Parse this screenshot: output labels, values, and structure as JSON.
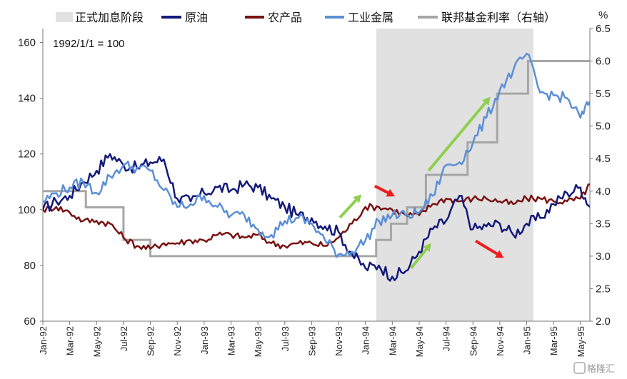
{
  "chart_data": {
    "type": "line",
    "annotation": "1992/1/1 = 100",
    "right_axis_unit": "%",
    "ylim_left": [
      60,
      165
    ],
    "yticks_left": [
      "60",
      "80",
      "100",
      "120",
      "140",
      "160"
    ],
    "ylim_right": [
      2.0,
      6.5
    ],
    "yticks_right": [
      "2.0",
      "2.5",
      "3.0",
      "3.5",
      "4.0",
      "4.5",
      "5.0",
      "5.5",
      "6.0",
      "6.5"
    ],
    "x_tick_labels": [
      "Jan-92",
      "Mar-92",
      "May-92",
      "Jul-92",
      "Sep-92",
      "Nov-92",
      "Jan-93",
      "Mar-93",
      "May-93",
      "Jul-93",
      "Sep-93",
      "Nov-93",
      "Jan-94",
      "Mar-94",
      "May-94",
      "Jul-94",
      "Sep-94",
      "Nov-94",
      "Jan-95",
      "Mar-95",
      "May-95"
    ],
    "x_tick_months": [
      0,
      2,
      4,
      6,
      8,
      10,
      12,
      14,
      16,
      18,
      20,
      22,
      24,
      26,
      28,
      30,
      32,
      34,
      36,
      38,
      40
    ],
    "x_range_months": [
      0,
      40.7
    ],
    "shaded_period": {
      "label": "正式加息阶段",
      "start_month": 24.8,
      "end_month": 36.5,
      "color": "#e1e1e1"
    },
    "series": [
      {
        "name": "原油",
        "axis": "left",
        "color": "#14197a",
        "x": [
          0,
          1,
          2,
          3,
          4,
          5,
          6,
          7,
          8,
          9,
          10,
          11,
          12,
          13,
          14,
          15,
          16,
          17,
          18,
          19,
          20,
          21,
          22,
          23,
          24,
          25,
          26,
          27,
          28,
          29,
          30,
          31,
          32,
          33,
          34,
          35,
          36,
          37,
          38,
          39,
          40,
          40.7
        ],
        "values": [
          100,
          103,
          105,
          110,
          114,
          120,
          116,
          115,
          117,
          118,
          104,
          103,
          106,
          108,
          107,
          109,
          108,
          104,
          101,
          98,
          97,
          94,
          92,
          84,
          79,
          80,
          76,
          78,
          85,
          93,
          96,
          105,
          93,
          94,
          95,
          91,
          95,
          97,
          102,
          106,
          108,
          101
        ]
      },
      {
        "name": "农产品",
        "axis": "left",
        "color": "#7a1212",
        "x": [
          0,
          1,
          2,
          3,
          4,
          5,
          6,
          7,
          8,
          9,
          10,
          11,
          12,
          13,
          14,
          15,
          16,
          17,
          18,
          19,
          20,
          21,
          22,
          23,
          24,
          25,
          26,
          27,
          28,
          29,
          30,
          31,
          32,
          33,
          34,
          35,
          36,
          37,
          38,
          39,
          40,
          40.7
        ],
        "values": [
          100,
          101,
          99,
          96,
          96,
          95,
          90,
          87,
          86,
          88,
          88,
          89,
          89,
          91,
          91,
          90,
          91,
          88,
          87,
          88,
          88,
          87,
          90,
          95,
          101,
          101,
          100,
          98,
          98,
          102,
          104,
          103,
          104,
          104,
          103,
          102,
          104,
          104,
          103,
          103,
          104,
          109
        ]
      },
      {
        "name": "工业金属",
        "axis": "left",
        "color": "#5b8fd6",
        "x": [
          0,
          1,
          2,
          3,
          4,
          5,
          6,
          7,
          8,
          9,
          10,
          11,
          12,
          13,
          14,
          15,
          16,
          17,
          18,
          19,
          20,
          21,
          22,
          23,
          24,
          25,
          26,
          27,
          28,
          29,
          30,
          31,
          32,
          33,
          34,
          35,
          36,
          37,
          38,
          39,
          40,
          40.7
        ],
        "values": [
          103,
          106,
          108,
          110,
          106,
          112,
          116,
          115,
          114,
          107,
          101,
          102,
          105,
          101,
          98,
          98,
          93,
          91,
          96,
          97,
          95,
          89,
          84,
          85,
          89,
          96,
          98,
          98,
          99,
          105,
          116,
          117,
          124,
          133,
          143,
          150,
          156,
          142,
          141,
          140,
          133,
          139
        ]
      },
      {
        "name": "联邦基金利率（右轴）",
        "axis": "right",
        "color": "#a6a6a6",
        "step": true,
        "x": [
          0,
          3.2,
          6,
          8,
          13.1,
          24.8,
          25.9,
          27.1,
          28.5,
          31.6,
          33.8,
          36.1,
          40.7
        ],
        "values": [
          4.0,
          3.75,
          3.25,
          3.0,
          3.0,
          3.25,
          3.5,
          3.75,
          4.25,
          4.75,
          5.5,
          6.0,
          6.0
        ]
      }
    ],
    "arrows": [
      {
        "color": "#8fcf4f",
        "from": [
          22.1,
          97.2
        ],
        "to": [
          23.7,
          105.5
        ]
      },
      {
        "color": "#ee1c1c",
        "from": [
          24.7,
          108.5
        ],
        "to": [
          26.2,
          104.8
        ]
      },
      {
        "color": "#8fcf4f",
        "from": [
          27.4,
          79.0
        ],
        "to": [
          28.9,
          88.0
        ]
      },
      {
        "color": "#8fcf4f",
        "from": [
          28.7,
          114.0
        ],
        "to": [
          33.3,
          140.5
        ]
      },
      {
        "color": "#ee1c1c",
        "from": [
          32.2,
          88.8
        ],
        "to": [
          34.3,
          82.7
        ]
      }
    ]
  },
  "watermark": "格隆汇"
}
